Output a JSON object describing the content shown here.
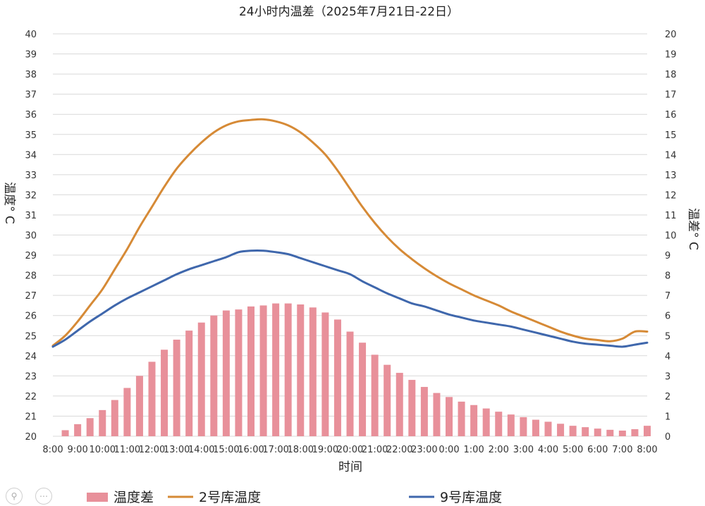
{
  "chart_data": {
    "type": "bar+line",
    "title": "24小时内温差（2025年7月21日-22日）",
    "xlabel": "时间",
    "ylabel_left": "温度° C",
    "ylabel_right": "温差° C",
    "ylim_left": [
      20,
      40
    ],
    "ylim_right": [
      0,
      20
    ],
    "grid": true,
    "legend_position": "bottom",
    "x_tick_labels": [
      "8:00",
      "9:00",
      "10:00",
      "11:00",
      "12:00",
      "13:00",
      "14:00",
      "15:00",
      "16:00",
      "17:00",
      "18:00",
      "19:00",
      "20:00",
      "21:00",
      "22:00",
      "23:00",
      "0:00",
      "1:00",
      "2:00",
      "3:00",
      "4:00",
      "5:00",
      "6:00",
      "7:00",
      "8:00"
    ],
    "y_left_ticks": [
      20,
      21,
      22,
      23,
      24,
      25,
      26,
      27,
      28,
      29,
      30,
      31,
      32,
      33,
      34,
      35,
      36,
      37,
      38,
      39,
      40
    ],
    "y_right_ticks": [
      0,
      1,
      2,
      3,
      4,
      5,
      6,
      7,
      8,
      9,
      10,
      11,
      12,
      13,
      14,
      15,
      16,
      17,
      18,
      19,
      20
    ],
    "x_hours": [
      0,
      0.5,
      1,
      1.5,
      2,
      2.5,
      3,
      3.5,
      4,
      4.5,
      5,
      5.5,
      6,
      6.5,
      7,
      7.5,
      8,
      8.5,
      9,
      9.5,
      10,
      10.5,
      11,
      11.5,
      12,
      12.5,
      13,
      13.5,
      14,
      14.5,
      15,
      15.5,
      16,
      16.5,
      17,
      17.5,
      18,
      18.5,
      19,
      19.5,
      20,
      20.5,
      21,
      21.5,
      22,
      22.5,
      23,
      23.5,
      24
    ],
    "series": [
      {
        "name": "温度差",
        "type": "bar",
        "axis": "right",
        "color": "#e8909a",
        "x": [
          0.5,
          1,
          1.5,
          2,
          2.5,
          3,
          3.5,
          4,
          4.5,
          5,
          5.5,
          6,
          6.5,
          7,
          7.5,
          8,
          8.5,
          9,
          9.5,
          10,
          10.5,
          11,
          11.5,
          12,
          12.5,
          13,
          13.5,
          14,
          14.5,
          15,
          15.5,
          16,
          16.5,
          17,
          17.5,
          18,
          18.5,
          19,
          19.5,
          20,
          20.5,
          21,
          21.5,
          22,
          22.5,
          23,
          23.5,
          24
        ],
        "values": [
          0.3,
          0.6,
          0.9,
          1.3,
          1.8,
          2.4,
          3.0,
          3.7,
          4.3,
          4.8,
          5.25,
          5.65,
          6.0,
          6.25,
          6.3,
          6.45,
          6.5,
          6.6,
          6.6,
          6.55,
          6.4,
          6.15,
          5.8,
          5.2,
          4.65,
          4.05,
          3.55,
          3.15,
          2.8,
          2.45,
          2.15,
          1.95,
          1.72,
          1.55,
          1.38,
          1.22,
          1.08,
          0.95,
          0.82,
          0.72,
          0.62,
          0.52,
          0.45,
          0.38,
          0.32,
          0.28,
          0.35,
          0.52
        ]
      },
      {
        "name": "2号库温度",
        "type": "line",
        "axis": "left",
        "color": "#d68a36",
        "values": [
          24.5,
          25.0,
          25.7,
          26.5,
          27.3,
          28.3,
          29.3,
          30.4,
          31.4,
          32.4,
          33.3,
          34.0,
          34.6,
          35.1,
          35.45,
          35.65,
          35.72,
          35.75,
          35.65,
          35.45,
          35.1,
          34.6,
          34.0,
          33.2,
          32.3,
          31.4,
          30.6,
          29.9,
          29.3,
          28.8,
          28.35,
          27.95,
          27.6,
          27.3,
          27.0,
          26.75,
          26.5,
          26.2,
          25.95,
          25.7,
          25.45,
          25.2,
          25.0,
          24.85,
          24.78,
          24.72,
          24.85,
          25.2,
          25.2
        ],
        "x": [
          0,
          0.5,
          1,
          1.5,
          2,
          2.5,
          3,
          3.5,
          4,
          4.5,
          5,
          5.5,
          6,
          6.5,
          7,
          7.5,
          8,
          8.5,
          9,
          9.5,
          10,
          10.5,
          11,
          11.5,
          12,
          12.5,
          13,
          13.5,
          14,
          14.5,
          15,
          15.5,
          16,
          16.5,
          17,
          17.5,
          18,
          18.5,
          19,
          19.5,
          20,
          20.5,
          21,
          21.5,
          22,
          22.5,
          23,
          23.5,
          24
        ]
      },
      {
        "name": "9号库温度",
        "type": "line",
        "axis": "left",
        "color": "#3f67ac",
        "values": [
          24.45,
          24.8,
          25.25,
          25.7,
          26.1,
          26.5,
          26.85,
          27.15,
          27.45,
          27.75,
          28.05,
          28.3,
          28.5,
          28.7,
          28.9,
          29.15,
          29.22,
          29.22,
          29.15,
          29.05,
          28.85,
          28.65,
          28.45,
          28.25,
          28.05,
          27.7,
          27.4,
          27.1,
          26.85,
          26.6,
          26.45,
          26.25,
          26.05,
          25.9,
          25.75,
          25.65,
          25.55,
          25.45,
          25.3,
          25.15,
          25.0,
          24.85,
          24.7,
          24.6,
          24.55,
          24.5,
          24.45,
          24.55,
          24.65
        ],
        "x": [
          0,
          0.5,
          1,
          1.5,
          2,
          2.5,
          3,
          3.5,
          4,
          4.5,
          5,
          5.5,
          6,
          6.5,
          7,
          7.5,
          8,
          8.5,
          9,
          9.5,
          10,
          10.5,
          11,
          11.5,
          12,
          12.5,
          13,
          13.5,
          14,
          14.5,
          15,
          15.5,
          16,
          16.5,
          17,
          17.5,
          18,
          18.5,
          19,
          19.5,
          20,
          20.5,
          21,
          21.5,
          22,
          22.5,
          23,
          23.5,
          24
        ]
      }
    ]
  }
}
